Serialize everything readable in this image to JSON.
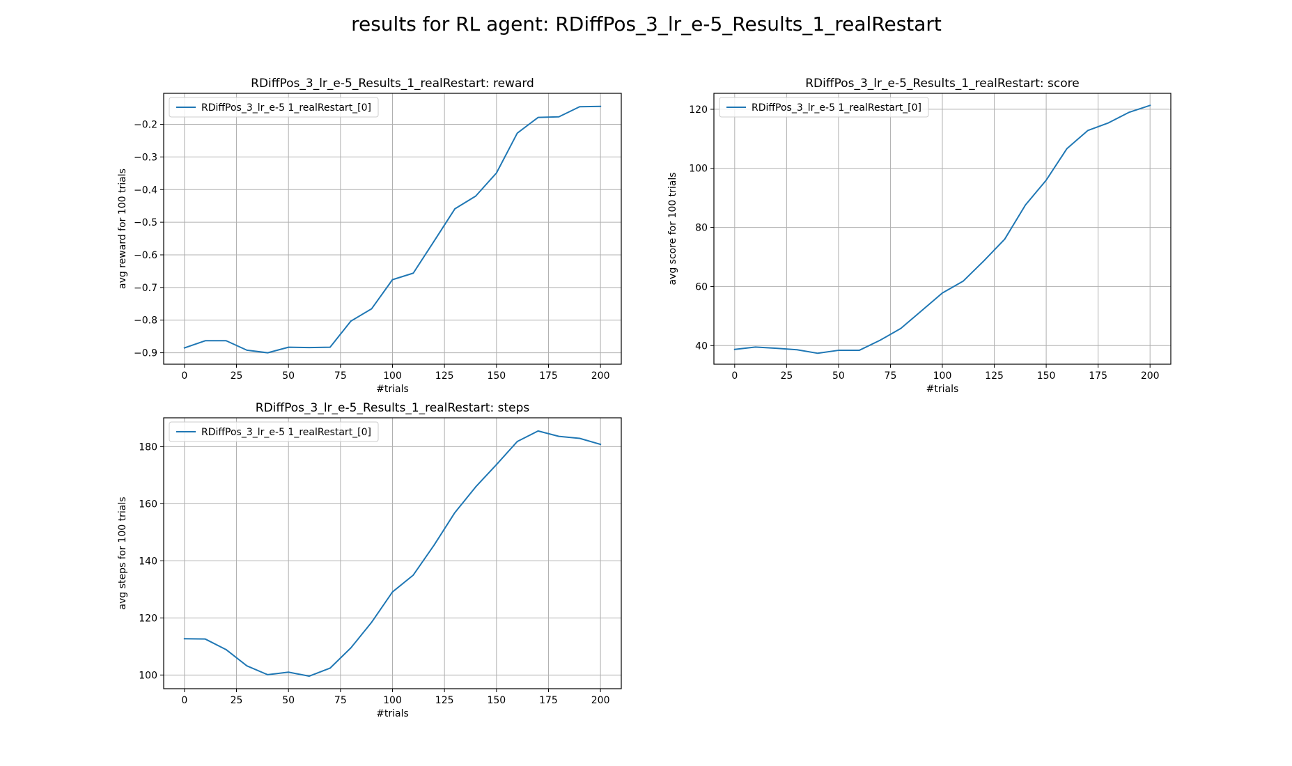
{
  "figure": {
    "suptitle": "results for RL agent: RDiffPos_3_lr_e-5_Results_1_realRestart"
  },
  "chart_data": [
    {
      "type": "line",
      "title": "RDiffPos_3_lr_e-5_Results_1_realRestart: reward",
      "xlabel": "#trials",
      "ylabel": "avg reward for 100 trials",
      "xlim": [
        -10,
        210
      ],
      "ylim": [
        -0.935,
        -0.105
      ],
      "xticks": [
        0,
        25,
        50,
        75,
        100,
        125,
        150,
        175,
        200
      ],
      "yticks": [
        -0.9,
        -0.8,
        -0.7,
        -0.6,
        -0.5,
        -0.4,
        -0.3,
        -0.2
      ],
      "ytick_labels": [
        "−0.9",
        "−0.8",
        "−0.7",
        "−0.6",
        "−0.5",
        "−0.4",
        "−0.3",
        "−0.2"
      ],
      "grid": true,
      "legend_position": "upper-left",
      "color": "#1f77b4",
      "series": [
        {
          "name": "RDiffPos_3_lr_e-5 1_realRestart_[0]",
          "x": [
            0,
            10,
            20,
            30,
            40,
            50,
            60,
            70,
            80,
            90,
            100,
            110,
            120,
            130,
            140,
            150,
            160,
            170,
            180,
            190,
            200
          ],
          "y": [
            -0.885,
            -0.863,
            -0.863,
            -0.892,
            -0.9,
            -0.883,
            -0.884,
            -0.883,
            -0.803,
            -0.765,
            -0.676,
            -0.656,
            -0.558,
            -0.459,
            -0.42,
            -0.349,
            -0.227,
            -0.179,
            -0.177,
            -0.146,
            -0.145
          ]
        }
      ]
    },
    {
      "type": "line",
      "title": "RDiffPos_3_lr_e-5_Results_1_realRestart: score",
      "xlabel": "#trials",
      "ylabel": "avg score for 100 trials",
      "xlim": [
        -10,
        210
      ],
      "ylim": [
        33.7,
        125.4
      ],
      "xticks": [
        0,
        25,
        50,
        75,
        100,
        125,
        150,
        175,
        200
      ],
      "yticks": [
        40,
        60,
        80,
        100,
        120
      ],
      "ytick_labels": [
        "40",
        "60",
        "80",
        "100",
        "120"
      ],
      "grid": true,
      "legend_position": "upper-left",
      "color": "#1f77b4",
      "series": [
        {
          "name": "RDiffPos_3_lr_e-5 1_realRestart_[0]",
          "x": [
            0,
            10,
            20,
            30,
            40,
            50,
            60,
            70,
            80,
            90,
            100,
            110,
            120,
            130,
            140,
            150,
            160,
            170,
            180,
            190,
            200
          ],
          "y": [
            38.7,
            39.5,
            39.1,
            38.6,
            37.4,
            38.4,
            38.4,
            41.8,
            45.8,
            51.8,
            57.8,
            61.8,
            68.7,
            76.0,
            87.6,
            96.0,
            106.7,
            112.8,
            115.4,
            119.0,
            121.3
          ]
        }
      ]
    },
    {
      "type": "line",
      "title": "RDiffPos_3_lr_e-5_Results_1_realRestart: steps",
      "xlabel": "#trials",
      "ylabel": "avg steps for 100 trials",
      "xlim": [
        -10,
        210
      ],
      "ylim": [
        95.2,
        190.1
      ],
      "xticks": [
        0,
        25,
        50,
        75,
        100,
        125,
        150,
        175,
        200
      ],
      "yticks": [
        100,
        120,
        140,
        160,
        180
      ],
      "ytick_labels": [
        "100",
        "120",
        "140",
        "160",
        "180"
      ],
      "grid": true,
      "legend_position": "upper-left",
      "color": "#1f77b4",
      "series": [
        {
          "name": "RDiffPos_3_lr_e-5 1_realRestart_[0]",
          "x": [
            0,
            10,
            20,
            30,
            40,
            50,
            60,
            70,
            80,
            90,
            100,
            110,
            120,
            130,
            140,
            150,
            160,
            170,
            180,
            190,
            200
          ],
          "y": [
            112.7,
            112.6,
            108.9,
            103.2,
            100.1,
            101.0,
            99.6,
            102.4,
            109.5,
            118.5,
            129.1,
            135.0,
            145.5,
            156.9,
            165.9,
            173.7,
            181.8,
            185.5,
            183.6,
            182.9,
            180.8
          ]
        }
      ]
    }
  ]
}
